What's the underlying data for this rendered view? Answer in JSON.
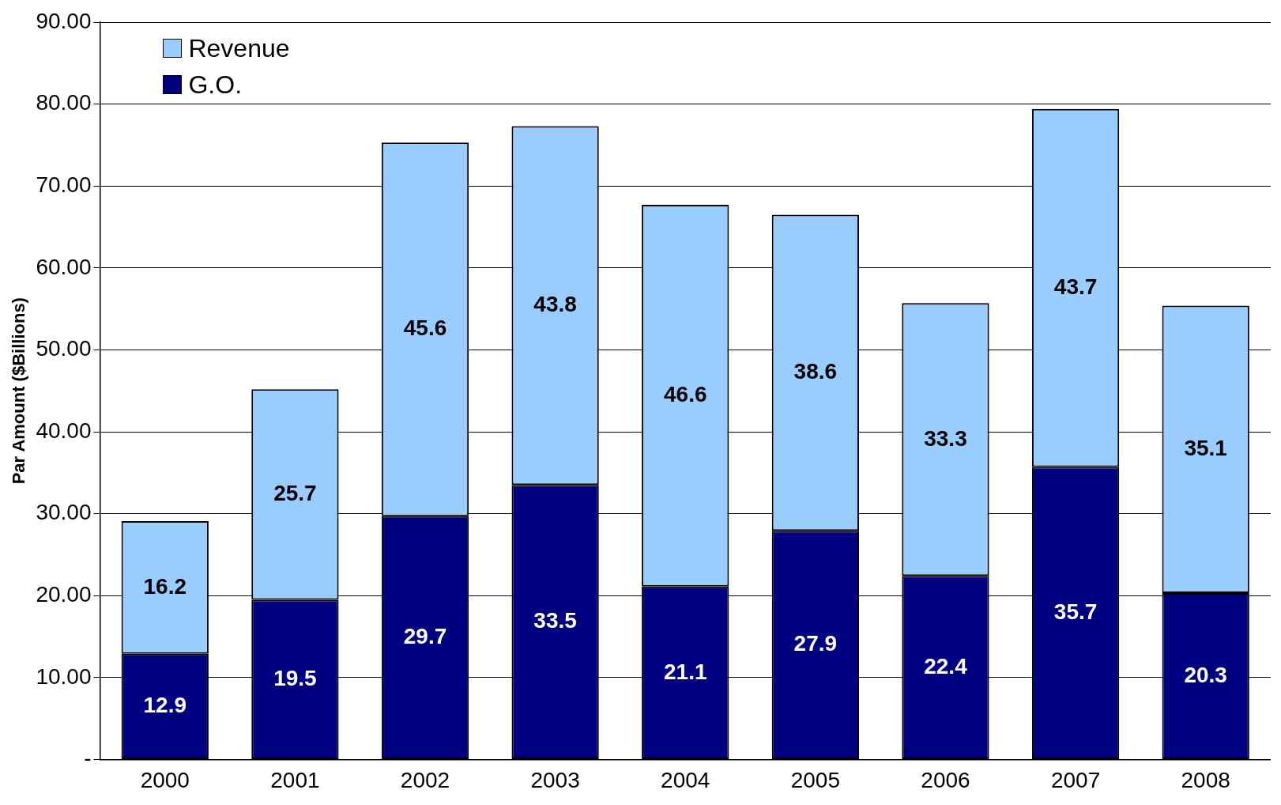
{
  "chart_data": {
    "type": "bar",
    "ylabel": "Par Amount ($Billions)",
    "categories": [
      "2000",
      "2001",
      "2002",
      "2003",
      "2004",
      "2005",
      "2006",
      "2007",
      "2008"
    ],
    "series": [
      {
        "name": "G.O.",
        "color": "#000080",
        "values": [
          12.9,
          19.5,
          29.7,
          33.5,
          21.1,
          27.9,
          22.4,
          35.7,
          20.3
        ]
      },
      {
        "name": "Revenue",
        "color": "#99ccff",
        "values": [
          16.2,
          25.7,
          45.6,
          43.8,
          46.6,
          38.6,
          33.3,
          43.7,
          35.1
        ]
      }
    ],
    "stacked": true,
    "data_labels": true,
    "grid": "y",
    "legend": "top left",
    "ylim": [
      0,
      90
    ],
    "yticks": [
      {
        "value": 0,
        "label": "-"
      },
      {
        "value": 10,
        "label": "10.00"
      },
      {
        "value": 20,
        "label": "20.00"
      },
      {
        "value": 30,
        "label": "30.00"
      },
      {
        "value": 40,
        "label": "40.00"
      },
      {
        "value": 50,
        "label": "50.00"
      },
      {
        "value": 60,
        "label": "60.00"
      },
      {
        "value": 70,
        "label": "70.00"
      },
      {
        "value": 80,
        "label": "80.00"
      },
      {
        "value": 90,
        "label": "90.00"
      }
    ]
  }
}
